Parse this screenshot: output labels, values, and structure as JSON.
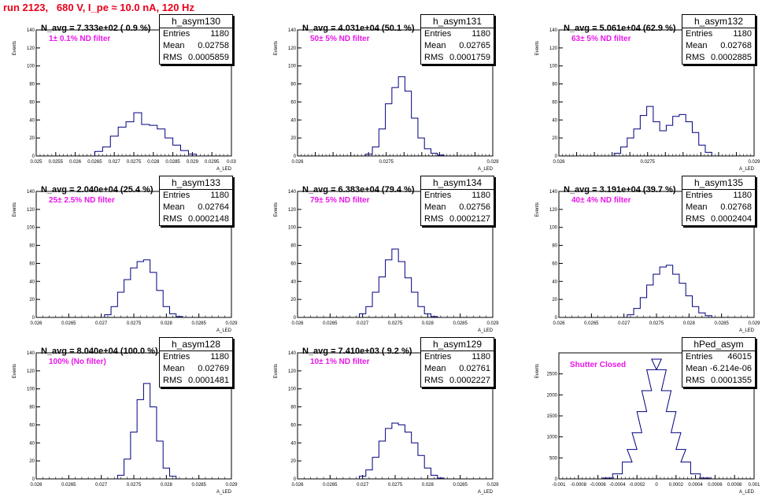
{
  "title": "run 2123,   680 V, I_pe ≈ 10.0 nA, 120 Hz",
  "chart_data": [
    {
      "type": "bar",
      "name": "h_asym130",
      "stats": {
        "Entries": "1180",
        "Mean": "0.02758",
        "RMS": "0.0005859"
      },
      "annotation": "N_avg = 7.333e+02 ( 0.9 %)",
      "filter": "1± 0.1% ND filter",
      "xlabel": "A_LED",
      "ylabel": "Events",
      "xlim": [
        0.025,
        0.03
      ],
      "ylim": [
        0,
        140
      ],
      "xticks": [
        "0.025",
        "0.0255",
        "0.026",
        "0.0265",
        "0.027",
        "0.0275",
        "0.028",
        "0.0285",
        "0.029",
        "0.0295",
        "0.03"
      ],
      "yticks": [
        "0",
        "20",
        "40",
        "60",
        "80",
        "100",
        "120",
        "140"
      ],
      "x": [
        0.0266,
        0.0268,
        0.027,
        0.0272,
        0.0274,
        0.0276,
        0.0278,
        0.028,
        0.0282,
        0.0284,
        0.0286,
        0.0288,
        0.029
      ],
      "values": [
        5,
        10,
        22,
        32,
        38,
        48,
        35,
        34,
        30,
        20,
        12,
        6,
        2
      ]
    },
    {
      "type": "bar",
      "name": "h_asym131",
      "stats": {
        "Entries": "1180",
        "Mean": "0.02765",
        "RMS": "0.0001759"
      },
      "annotation": "N_avg = 4.031e+04 (50.1 %)",
      "filter": "50± 5% ND filter",
      "xlabel": "A_LED",
      "ylabel": "Events",
      "xlim": [
        0.026,
        0.029
      ],
      "ylim": [
        0,
        140
      ],
      "xticks": [
        "0.026",
        "",
        "",
        "",
        "",
        "0.0275",
        "",
        "",
        "",
        "",
        "",
        "0.029"
      ],
      "yticks": [
        "0",
        "20",
        "40",
        "60",
        "80",
        "100",
        "120",
        "140"
      ],
      "x": [
        0.0271,
        0.0272,
        0.0273,
        0.0274,
        0.0275,
        0.0276,
        0.0277,
        0.0278,
        0.0279,
        0.028,
        0.0281,
        0.0282
      ],
      "values": [
        2,
        10,
        30,
        58,
        76,
        88,
        72,
        42,
        20,
        8,
        3,
        1
      ]
    },
    {
      "type": "bar",
      "name": "h_asym132",
      "stats": {
        "Entries": "1180",
        "Mean": "0.02768",
        "RMS": "0.0002885"
      },
      "annotation": "N_avg = 5.061e+04 (62.9 %)",
      "filter": "63± 5% ND filter",
      "xlabel": "A_LED",
      "ylabel": "Events",
      "xlim": [
        0.026,
        0.029
      ],
      "ylim": [
        0,
        140
      ],
      "xticks": [
        "0.026",
        "",
        "",
        "",
        "",
        "0.0275",
        "",
        "",
        "",
        "",
        "",
        "0.029"
      ],
      "yticks": [
        "0",
        "20",
        "40",
        "60",
        "80",
        "100",
        "120",
        "140"
      ],
      "x": [
        0.0269,
        0.027,
        0.0271,
        0.0272,
        0.0273,
        0.0274,
        0.0275,
        0.0276,
        0.0277,
        0.0278,
        0.0279,
        0.028,
        0.0281,
        0.0282,
        0.0283
      ],
      "values": [
        3,
        10,
        20,
        30,
        45,
        55,
        38,
        28,
        34,
        44,
        46,
        38,
        26,
        12,
        4
      ]
    },
    {
      "type": "bar",
      "name": "h_asym133",
      "stats": {
        "Entries": "1180",
        "Mean": "0.02764",
        "RMS": "0.0002148"
      },
      "annotation": "N_avg = 2.040e+04 (25.4 %)",
      "filter": "25± 2.5% ND filter",
      "xlabel": "A_LED",
      "ylabel": "Events",
      "xlim": [
        0.026,
        0.029
      ],
      "ylim": [
        0,
        140
      ],
      "xticks": [
        "0.026",
        "0.0265",
        "0.027",
        "0.0275",
        "0.028",
        "0.0285",
        "0.029"
      ],
      "yticks": [
        "0",
        "20",
        "40",
        "60",
        "80",
        "100",
        "120",
        "140"
      ],
      "x": [
        0.0271,
        0.0272,
        0.0273,
        0.0274,
        0.0275,
        0.0276,
        0.0277,
        0.0278,
        0.0279,
        0.028,
        0.0281,
        0.0282
      ],
      "values": [
        3,
        12,
        28,
        42,
        55,
        62,
        64,
        50,
        30,
        12,
        4,
        1
      ]
    },
    {
      "type": "bar",
      "name": "h_asym134",
      "stats": {
        "Entries": "1180",
        "Mean": "0.02756",
        "RMS": "0.0002127"
      },
      "annotation": "N_avg = 6.383e+04 (79.4 %)",
      "filter": "79± 5% ND filter",
      "xlabel": "A_LED",
      "ylabel": "Events",
      "xlim": [
        0.026,
        0.029
      ],
      "ylim": [
        0,
        140
      ],
      "xticks": [
        "0.026",
        "0.0265",
        "0.027",
        "0.0275",
        "0.028",
        "0.0285",
        "0.029"
      ],
      "yticks": [
        "0",
        "20",
        "40",
        "60",
        "80",
        "100",
        "120",
        "140"
      ],
      "x": [
        0.027,
        0.0271,
        0.0272,
        0.0273,
        0.0274,
        0.0275,
        0.0276,
        0.0277,
        0.0278,
        0.0279,
        0.028,
        0.0281
      ],
      "values": [
        4,
        12,
        28,
        45,
        64,
        76,
        62,
        44,
        28,
        12,
        4,
        1
      ]
    },
    {
      "type": "bar",
      "name": "h_asym135",
      "stats": {
        "Entries": "1180",
        "Mean": "0.02768",
        "RMS": "0.0002404"
      },
      "annotation": "N_avg = 3.191e+04 (39.7 %)",
      "filter": "40± 4% ND filter",
      "xlabel": "A_LED",
      "ylabel": "Events",
      "xlim": [
        0.026,
        0.029
      ],
      "ylim": [
        0,
        140
      ],
      "xticks": [
        "0.026",
        "0.0265",
        "0.027",
        "0.0275",
        "0.028",
        "0.0285",
        "0.029"
      ],
      "yticks": [
        "0",
        "20",
        "40",
        "60",
        "80",
        "100",
        "120",
        "140"
      ],
      "x": [
        0.0271,
        0.0272,
        0.0273,
        0.0274,
        0.0275,
        0.0276,
        0.0277,
        0.0278,
        0.0279,
        0.028,
        0.0281,
        0.0282,
        0.0283
      ],
      "values": [
        3,
        10,
        22,
        36,
        48,
        56,
        58,
        48,
        38,
        24,
        12,
        5,
        2
      ]
    },
    {
      "type": "bar",
      "name": "h_asym128",
      "stats": {
        "Entries": "1180",
        "Mean": "0.02769",
        "RMS": "0.0001481"
      },
      "annotation": "N_avg = 8.040e+04 (100.0 %)",
      "filter": "100% (No filter)",
      "xlabel": "A_LED",
      "ylabel": "Events",
      "xlim": [
        0.026,
        0.029
      ],
      "ylim": [
        0,
        140
      ],
      "xticks": [
        "0.026",
        "0.0265",
        "0.027",
        "0.0275",
        "0.028",
        "0.0285",
        "0.029"
      ],
      "yticks": [
        "0",
        "20",
        "40",
        "60",
        "80",
        "100",
        "120",
        "140"
      ],
      "x": [
        0.0273,
        0.0274,
        0.0275,
        0.0276,
        0.0277,
        0.0278,
        0.0279,
        0.028,
        0.0281
      ],
      "values": [
        4,
        22,
        52,
        88,
        106,
        80,
        42,
        12,
        3
      ]
    },
    {
      "type": "bar",
      "name": "h_asym129",
      "stats": {
        "Entries": "1180",
        "Mean": "0.02761",
        "RMS": "0.0002227"
      },
      "annotation": "N_avg = 7.410e+03 ( 9.2 %)",
      "filter": "10± 1% ND filter",
      "xlabel": "A_LED",
      "ylabel": "Events",
      "xlim": [
        0.026,
        0.029
      ],
      "ylim": [
        0,
        140
      ],
      "xticks": [
        "0.026",
        "0.0265",
        "0.027",
        "0.0275",
        "0.028",
        "0.0285",
        "0.029"
      ],
      "yticks": [
        "0",
        "20",
        "40",
        "60",
        "80",
        "100",
        "120",
        "140"
      ],
      "x": [
        0.027,
        0.0271,
        0.0272,
        0.0273,
        0.0274,
        0.0275,
        0.0276,
        0.0277,
        0.0278,
        0.0279,
        0.028,
        0.0281,
        0.0282
      ],
      "values": [
        3,
        10,
        24,
        42,
        56,
        62,
        60,
        52,
        40,
        26,
        12,
        4,
        1
      ]
    },
    {
      "type": "bar",
      "name": "hPed_asym",
      "stats": {
        "Entries": "46015",
        "Mean": "-6.214e-06",
        "RMS": "0.0001355"
      },
      "annotation": "",
      "filter": "Shutter Closed",
      "xlabel": "A_LED",
      "ylabel": "Events",
      "xlim": [
        -0.001,
        0.001
      ],
      "ylim": [
        0,
        3000
      ],
      "xticks": [
        "-0.001",
        "-0.0008",
        "-0.0006",
        "-0.0004",
        "-0.0002",
        "0",
        "0.0002",
        "0.0004",
        "0.0006",
        "0.0008",
        "0.001"
      ],
      "yticks": [
        "0",
        "500",
        "1000",
        "1500",
        "2000",
        "2500"
      ],
      "x": [
        -0.0005,
        -0.0004,
        -0.0003,
        -0.00025,
        -0.0002,
        -0.00015,
        -0.0001,
        -5e-05,
        0,
        5e-05,
        0.0001,
        0.00015,
        0.0002,
        0.00025,
        0.0003,
        0.0004,
        0.0005
      ],
      "values": [
        20,
        120,
        400,
        700,
        1100,
        1600,
        2100,
        2600,
        2850,
        2600,
        2100,
        1600,
        1100,
        700,
        400,
        120,
        20
      ]
    }
  ]
}
